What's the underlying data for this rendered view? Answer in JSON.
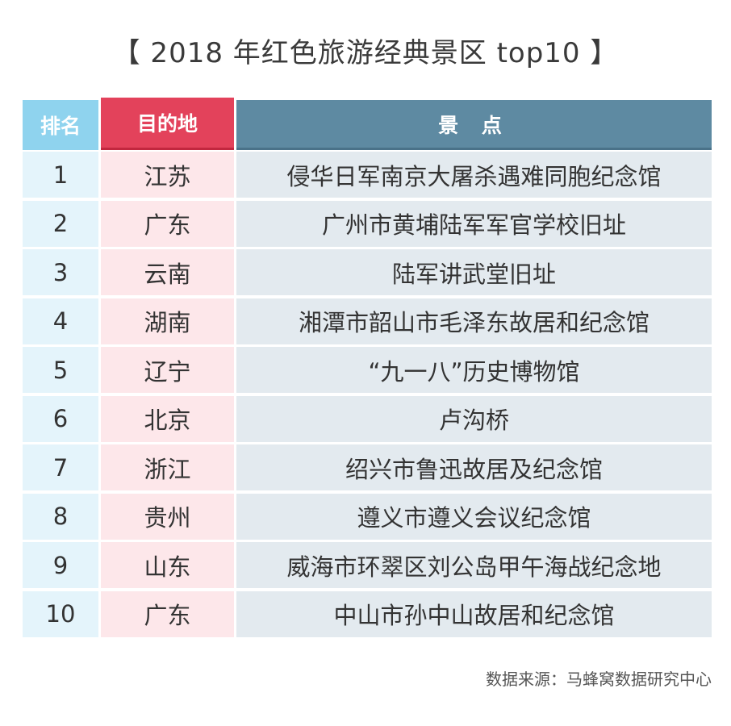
{
  "title": "【 2018 年红色旅游经典景区 top10 】",
  "table": {
    "headers": {
      "rank": "排名",
      "destination": "目的地",
      "spot": "景 点"
    },
    "rows": [
      {
        "rank": "1",
        "destination": "江苏",
        "spot": "侵华日军南京大屠杀遇难同胞纪念馆"
      },
      {
        "rank": "2",
        "destination": "广东",
        "spot": "广州市黄埔陆军军官学校旧址"
      },
      {
        "rank": "3",
        "destination": "云南",
        "spot": "陆军讲武堂旧址"
      },
      {
        "rank": "4",
        "destination": "湖南",
        "spot": "湘潭市韶山市毛泽东故居和纪念馆"
      },
      {
        "rank": "5",
        "destination": "辽宁",
        "spot": "“九一八”历史博物馆"
      },
      {
        "rank": "6",
        "destination": "北京",
        "spot": "卢沟桥"
      },
      {
        "rank": "7",
        "destination": "浙江",
        "spot": "绍兴市鲁迅故居及纪念馆"
      },
      {
        "rank": "8",
        "destination": "贵州",
        "spot": "遵义市遵义会议纪念馆"
      },
      {
        "rank": "9",
        "destination": "山东",
        "spot": "威海市环翠区刘公岛甲午海战纪念地"
      },
      {
        "rank": "10",
        "destination": "广东",
        "spot": "中山市孙中山故居和纪念馆"
      }
    ]
  },
  "source": "数据来源：马蜂窝数据研究中心",
  "colors": {
    "rank_header": "#8fd3ee",
    "destination_header": "#e3425b",
    "spot_header": "#5e8aa2",
    "rank_cell": "#e4f4fb",
    "destination_cell": "#fde7ea",
    "spot_cell": "#e3eaef"
  }
}
